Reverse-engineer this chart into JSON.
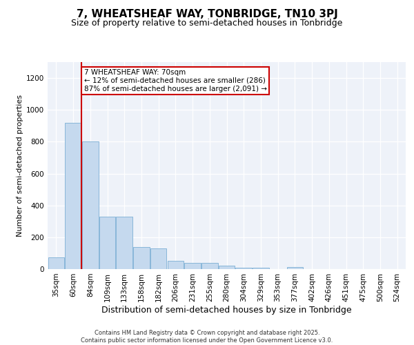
{
  "title1": "7, WHEATSHEAF WAY, TONBRIDGE, TN10 3PJ",
  "title2": "Size of property relative to semi-detached houses in Tonbridge",
  "xlabel": "Distribution of semi-detached houses by size in Tonbridge",
  "ylabel": "Number of semi-detached properties",
  "categories": [
    "35sqm",
    "60sqm",
    "84sqm",
    "109sqm",
    "133sqm",
    "158sqm",
    "182sqm",
    "206sqm",
    "231sqm",
    "255sqm",
    "280sqm",
    "304sqm",
    "329sqm",
    "353sqm",
    "377sqm",
    "402sqm",
    "426sqm",
    "451sqm",
    "475sqm",
    "500sqm",
    "524sqm"
  ],
  "values": [
    75,
    920,
    800,
    330,
    330,
    140,
    130,
    50,
    40,
    40,
    20,
    10,
    10,
    0,
    15,
    0,
    0,
    0,
    0,
    0,
    0
  ],
  "bar_color": "#c5d9ee",
  "bar_edge_color": "#7bafd4",
  "property_line_color": "#cc0000",
  "annotation_title": "7 WHEATSHEAF WAY: 70sqm",
  "annotation_line1": "← 12% of semi-detached houses are smaller (286)",
  "annotation_line2": "87% of semi-detached houses are larger (2,091) →",
  "annotation_box_color": "#ffffff",
  "annotation_box_edge": "#cc0000",
  "ylim": [
    0,
    1300
  ],
  "yticks": [
    0,
    200,
    400,
    600,
    800,
    1000,
    1200
  ],
  "background_color": "#eef2f9",
  "footer1": "Contains HM Land Registry data © Crown copyright and database right 2025.",
  "footer2": "Contains public sector information licensed under the Open Government Licence v3.0.",
  "title1_fontsize": 11,
  "title2_fontsize": 9,
  "xlabel_fontsize": 9,
  "ylabel_fontsize": 8,
  "tick_fontsize": 7.5,
  "footer_fontsize": 6
}
